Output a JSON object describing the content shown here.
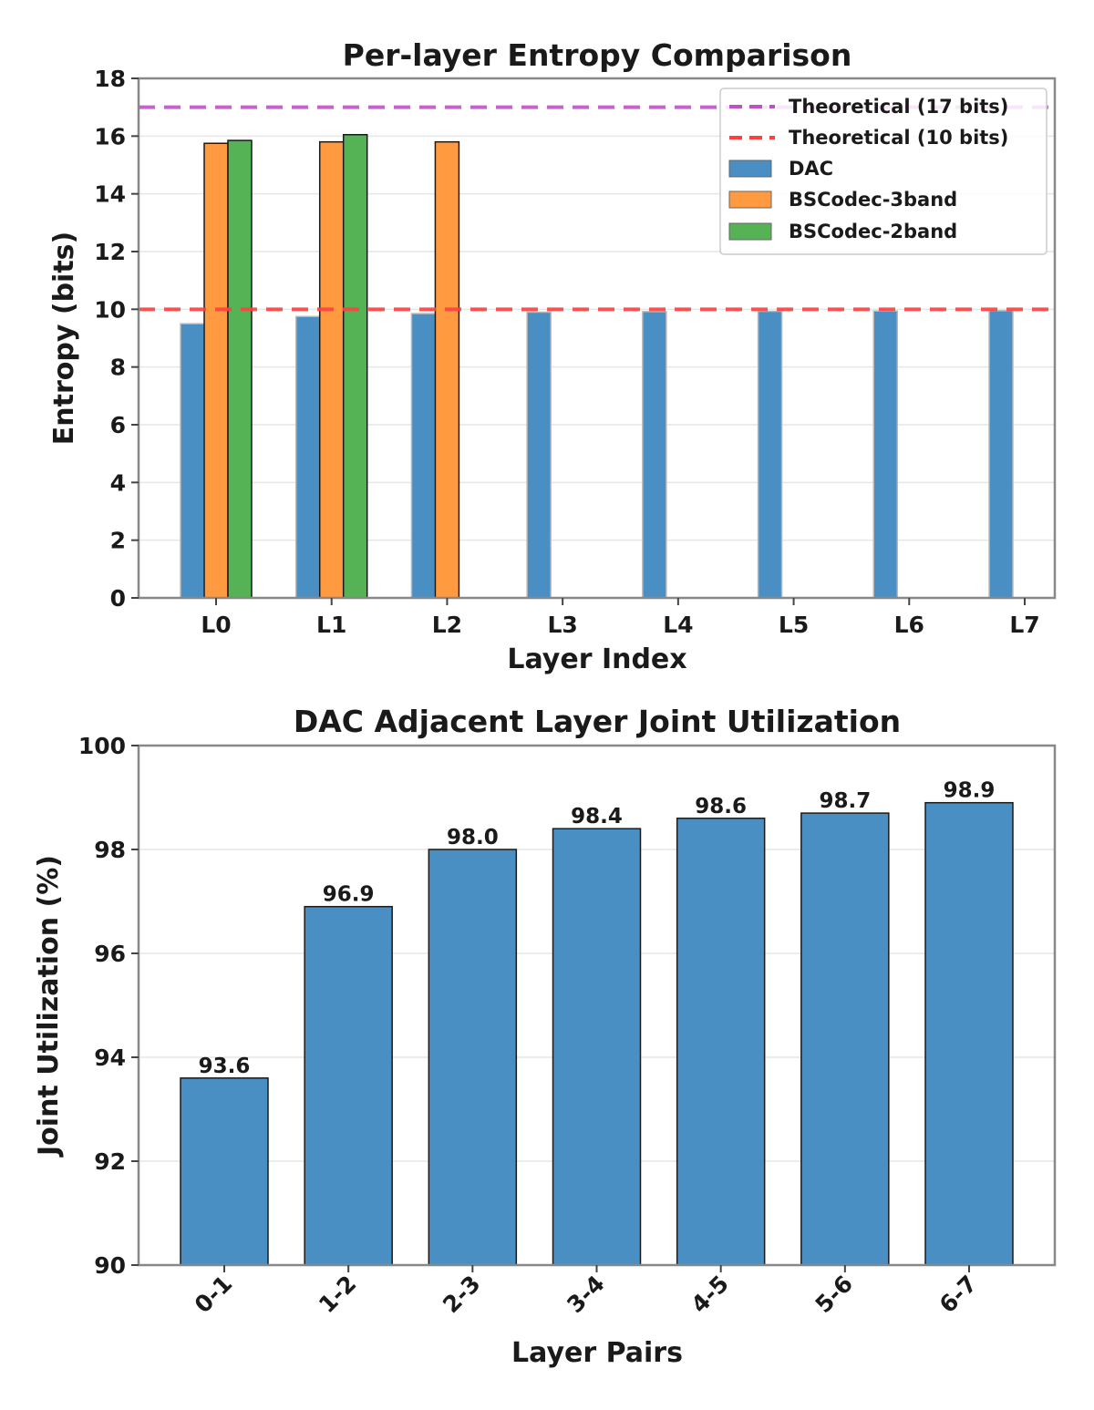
{
  "chart_data": [
    {
      "type": "bar",
      "title": "Per-layer Entropy Comparison",
      "xlabel": "Layer Index",
      "ylabel": "Entropy (bits)",
      "ylim": [
        0,
        18
      ],
      "yticks": [
        0,
        2,
        4,
        6,
        8,
        10,
        12,
        14,
        16,
        18
      ],
      "categories": [
        "L0",
        "L1",
        "L2",
        "L3",
        "L4",
        "L5",
        "L6",
        "L7"
      ],
      "grid": true,
      "legend_position": "top-right",
      "reference_lines": [
        {
          "name": "Theoretical (17 bits)",
          "y": 17,
          "color": "#c050c8",
          "style": "dashed"
        },
        {
          "name": "Theoretical (10 bits)",
          "y": 10,
          "color": "#ff4040",
          "style": "dashed"
        }
      ],
      "series": [
        {
          "name": "DAC",
          "color": "#4a8fc4",
          "values": [
            9.5,
            9.75,
            9.85,
            9.9,
            9.92,
            9.93,
            9.94,
            9.95
          ]
        },
        {
          "name": "BSCodec-3band",
          "color": "#ff9a40",
          "values": [
            15.75,
            15.8,
            15.8,
            null,
            null,
            null,
            null,
            null
          ]
        },
        {
          "name": "BSCodec-2band",
          "color": "#55b355",
          "values": [
            15.85,
            16.05,
            null,
            null,
            null,
            null,
            null,
            null
          ]
        }
      ]
    },
    {
      "type": "bar",
      "title": "DAC Adjacent Layer Joint Utilization",
      "xlabel": "Layer Pairs",
      "ylabel": "Joint Utilization (%)",
      "ylim": [
        90,
        100
      ],
      "yticks": [
        90,
        92,
        94,
        96,
        98,
        100
      ],
      "categories": [
        "0-1",
        "1-2",
        "2-3",
        "3-4",
        "4-5",
        "5-6",
        "6-7"
      ],
      "grid": true,
      "color": "#4a8fc4",
      "values": [
        93.6,
        96.9,
        98.0,
        98.4,
        98.6,
        98.7,
        98.9
      ],
      "data_labels": [
        "93.6",
        "96.9",
        "98.0",
        "98.4",
        "98.6",
        "98.7",
        "98.9"
      ]
    }
  ]
}
